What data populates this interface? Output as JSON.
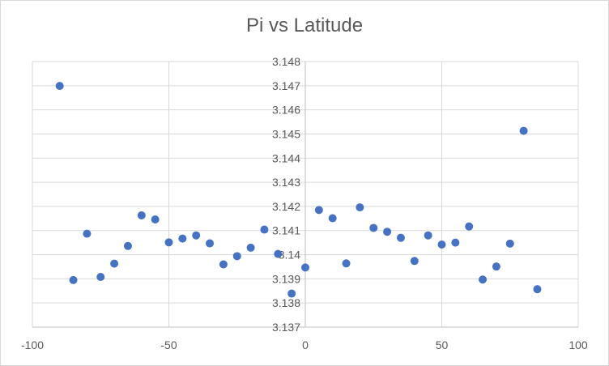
{
  "chart_data": {
    "type": "scatter",
    "title": "Pi vs Latitude",
    "xlabel": "",
    "ylabel": "",
    "xlim": [
      -100,
      100
    ],
    "ylim": [
      3.137,
      3.148
    ],
    "x_ticks": [
      -100,
      -50,
      0,
      50,
      100
    ],
    "x_tick_labels": [
      "-100",
      "-50",
      "0",
      "50",
      "100"
    ],
    "y_ticks": [
      3.137,
      3.138,
      3.139,
      3.14,
      3.141,
      3.142,
      3.143,
      3.144,
      3.145,
      3.146,
      3.147,
      3.148
    ],
    "y_tick_labels": [
      "3.137",
      "3.138",
      "3.139",
      "3.14",
      "3.141",
      "3.142",
      "3.143",
      "3.144",
      "3.145",
      "3.146",
      "3.147",
      "3.148"
    ],
    "grid": true,
    "legend": false,
    "series": [
      {
        "name": "Pi",
        "color": "#4472c4",
        "points": [
          {
            "x": -90,
            "y": 3.14699
          },
          {
            "x": -85,
            "y": 3.13895
          },
          {
            "x": -80,
            "y": 3.14087
          },
          {
            "x": -75,
            "y": 3.13908
          },
          {
            "x": -70,
            "y": 3.13963
          },
          {
            "x": -65,
            "y": 3.14036
          },
          {
            "x": -60,
            "y": 3.14163
          },
          {
            "x": -55,
            "y": 3.14146
          },
          {
            "x": -50,
            "y": 3.14051
          },
          {
            "x": -45,
            "y": 3.14067
          },
          {
            "x": -40,
            "y": 3.1408
          },
          {
            "x": -35,
            "y": 3.14047
          },
          {
            "x": -30,
            "y": 3.1396
          },
          {
            "x": -25,
            "y": 3.13994
          },
          {
            "x": -20,
            "y": 3.14029
          },
          {
            "x": -15,
            "y": 3.14104
          },
          {
            "x": -10,
            "y": 3.14003
          },
          {
            "x": -5,
            "y": 3.13839
          },
          {
            "x": 0,
            "y": 3.13947
          },
          {
            "x": 5,
            "y": 3.14185
          },
          {
            "x": 10,
            "y": 3.14151
          },
          {
            "x": 15,
            "y": 3.13964
          },
          {
            "x": 20,
            "y": 3.14196
          },
          {
            "x": 25,
            "y": 3.14111
          },
          {
            "x": 30,
            "y": 3.14095
          },
          {
            "x": 35,
            "y": 3.1407
          },
          {
            "x": 40,
            "y": 3.13974
          },
          {
            "x": 45,
            "y": 3.1408
          },
          {
            "x": 50,
            "y": 3.14042
          },
          {
            "x": 55,
            "y": 3.1405
          },
          {
            "x": 60,
            "y": 3.14117
          },
          {
            "x": 65,
            "y": 3.13897
          },
          {
            "x": 70,
            "y": 3.13951
          },
          {
            "x": 75,
            "y": 3.14046
          },
          {
            "x": 80,
            "y": 3.14513
          },
          {
            "x": 85,
            "y": 3.13857
          }
        ]
      }
    ]
  },
  "colors": {
    "gridline": "#d9d9d9",
    "marker": "#4472c4",
    "text": "#595959"
  }
}
